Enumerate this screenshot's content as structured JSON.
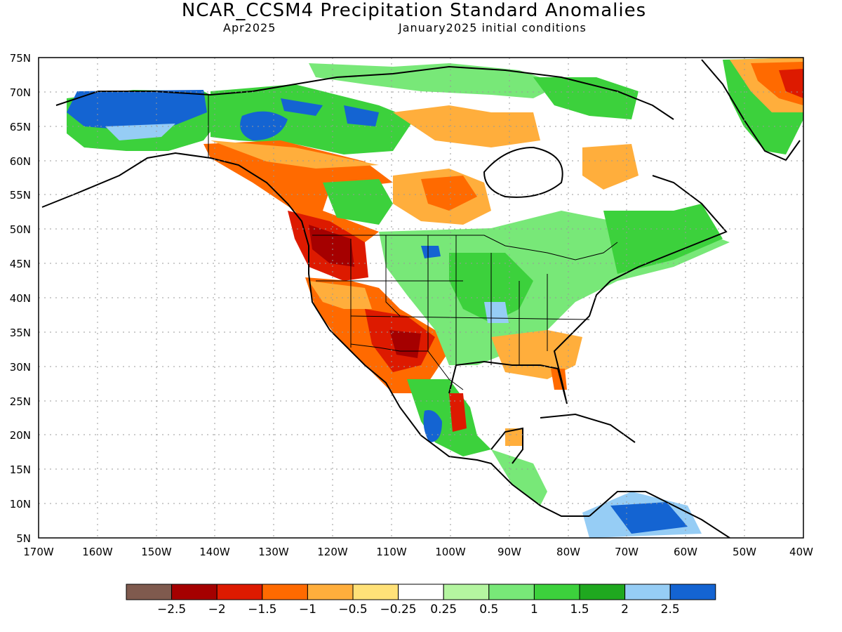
{
  "header": {
    "title": "NCAR_CCSM4 Precipitation Standard Anomalies",
    "valid_month": "Apr2025",
    "initial_conditions": "January2025 initial conditions"
  },
  "axes": {
    "lat_labels": [
      "75N",
      "70N",
      "65N",
      "60N",
      "55N",
      "50N",
      "45N",
      "40N",
      "35N",
      "30N",
      "25N",
      "20N",
      "15N",
      "10N",
      "5N"
    ],
    "lon_labels": [
      "170W",
      "160W",
      "150W",
      "140W",
      "130W",
      "120W",
      "110W",
      "100W",
      "90W",
      "80W",
      "70W",
      "60W",
      "50W",
      "40W"
    ]
  },
  "colorbar": {
    "colors": [
      "#7f5a4e",
      "#a50000",
      "#dd1a00",
      "#ff6a00",
      "#ffae3c",
      "#ffe178",
      "#ffffff",
      "#b4f5a0",
      "#78e878",
      "#3cd13c",
      "#1fa81f",
      "#96cdf5",
      "#1464d2"
    ],
    "labels": [
      "−2.5",
      "−2",
      "−1.5",
      "−1",
      "−0.5",
      "−0.25",
      "0.25",
      "0.5",
      "1",
      "1.5",
      "2",
      "2.5"
    ]
  }
}
